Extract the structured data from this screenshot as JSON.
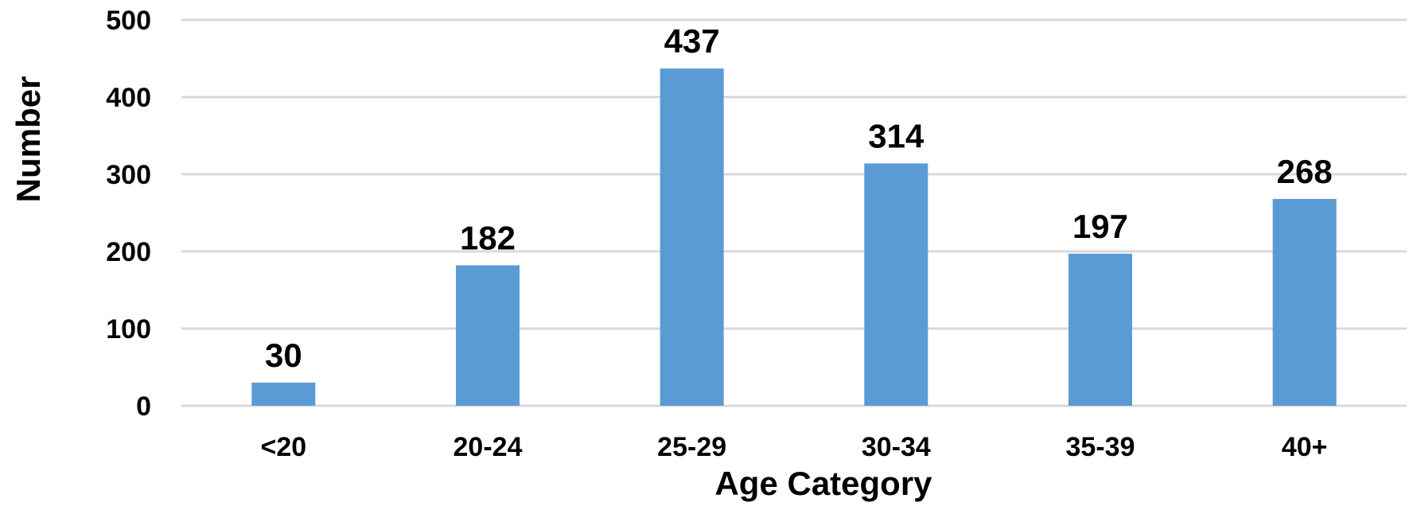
{
  "chart_data": {
    "type": "bar",
    "title": "",
    "xlabel": "Age Category",
    "ylabel": "Number",
    "categories": [
      "<20",
      "20-24",
      "25-29",
      "30-34",
      "35-39",
      "40+"
    ],
    "values": [
      30,
      182,
      437,
      314,
      197,
      268
    ],
    "ylim": [
      0,
      500
    ],
    "yticks": [
      0,
      100,
      200,
      300,
      400,
      500
    ],
    "grid": true,
    "legend": "none",
    "bar_color": "#5b9bd5"
  }
}
